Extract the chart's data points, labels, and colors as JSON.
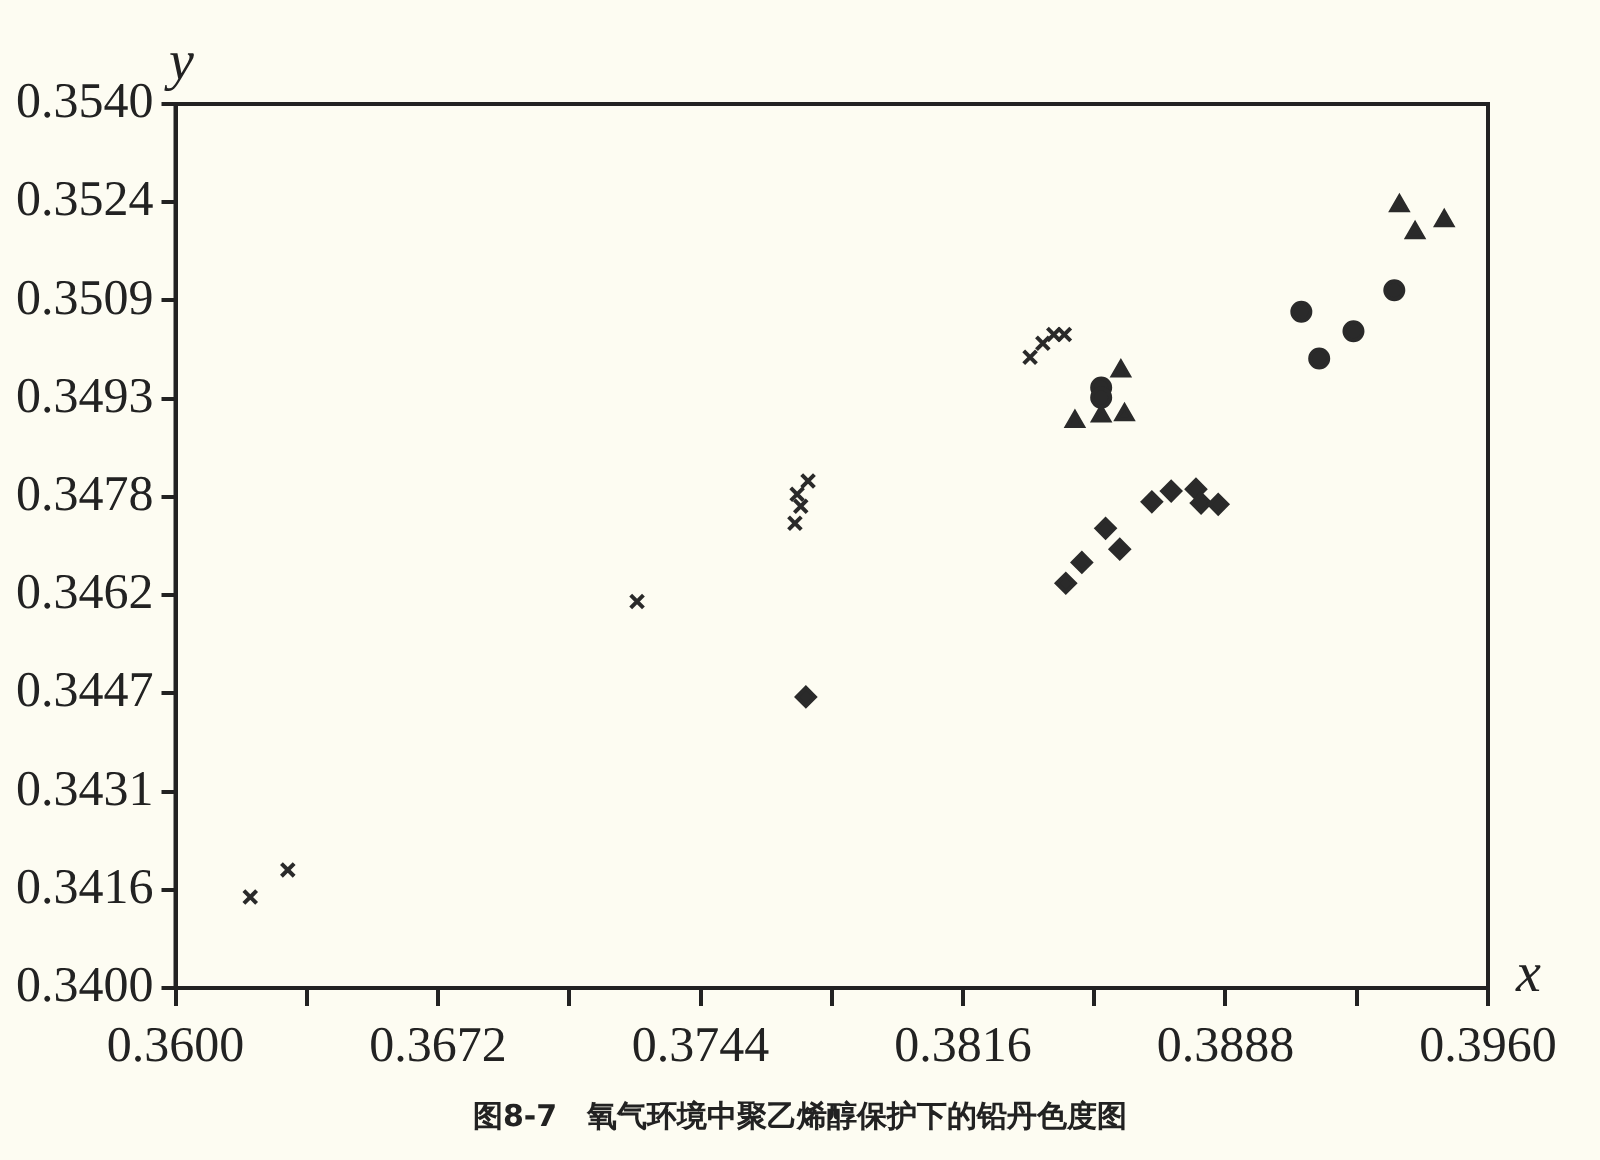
{
  "chart_data": {
    "type": "scatter",
    "xlabel": "x",
    "ylabel": "y",
    "annotations": [
      "图8-7　氧气环境中聚乙烯醇保护下的铅丹色度图"
    ],
    "xlim": [
      0.36,
      0.396
    ],
    "ylim": [
      0.34,
      0.354
    ],
    "xticks": [
      {
        "value": 0.36,
        "label": "0.3600"
      },
      {
        "value": 0.3636,
        "label": null
      },
      {
        "value": 0.3672,
        "label": "0.3672"
      },
      {
        "value": 0.3708,
        "label": null
      },
      {
        "value": 0.3744,
        "label": "0.3744"
      },
      {
        "value": 0.378,
        "label": null
      },
      {
        "value": 0.3816,
        "label": "0.3816"
      },
      {
        "value": 0.3852,
        "label": null
      },
      {
        "value": 0.3888,
        "label": "0.3888"
      },
      {
        "value": 0.3924,
        "label": null
      },
      {
        "value": 0.396,
        "label": "0.3960"
      }
    ],
    "yticks": [
      {
        "value": 0.34,
        "label": "0.3400"
      },
      {
        "value": 0.341556,
        "label": "0.3416"
      },
      {
        "value": 0.343111,
        "label": "0.3431"
      },
      {
        "value": 0.344667,
        "label": "0.3447"
      },
      {
        "value": 0.346222,
        "label": "0.3462"
      },
      {
        "value": 0.347778,
        "label": "0.3478"
      },
      {
        "value": 0.349333,
        "label": "0.3493"
      },
      {
        "value": 0.350889,
        "label": "0.3509"
      },
      {
        "value": 0.352444,
        "label": "0.3524"
      },
      {
        "value": 0.354,
        "label": "0.3540"
      }
    ],
    "grid": false,
    "legend": false,
    "series": [
      {
        "color": "#2a2a2a",
        "marker": "cross",
        "x": [
          0.36205,
          0.36308,
          0.37266,
          0.37735,
          0.37705,
          0.37715,
          0.37699,
          0.38344,
          0.38379,
          0.38409,
          0.38438
        ],
        "values": [
          0.34144,
          0.34187,
          0.34612,
          0.34803,
          0.34782,
          0.34763,
          0.34736,
          0.34999,
          0.35021,
          0.35035,
          0.35035
        ]
      },
      {
        "color": "#2a2a2a",
        "marker": "diamond",
        "x": [
          0.37729,
          0.38442,
          0.38486,
          0.38551,
          0.3859,
          0.38678,
          0.38731,
          0.38799,
          0.38813,
          0.3886
        ],
        "values": [
          0.34461,
          0.34641,
          0.34674,
          0.34728,
          0.34695,
          0.3477,
          0.34787,
          0.3479,
          0.34768,
          0.34766
        ]
      },
      {
        "color": "#2a2a2a",
        "marker": "circle",
        "x": [
          0.38539,
          0.38539,
          0.39088,
          0.39137,
          0.39231,
          0.39343
        ],
        "values": [
          0.34951,
          0.34935,
          0.35071,
          0.34997,
          0.3504,
          0.35105
        ]
      },
      {
        "color": "#2a2a2a",
        "marker": "triangle",
        "x": [
          0.38593,
          0.38467,
          0.38539,
          0.38603,
          0.39357,
          0.394,
          0.3948
        ],
        "values": [
          0.34977,
          0.34897,
          0.34906,
          0.34908,
          0.35239,
          0.35196,
          0.35215
        ]
      }
    ]
  }
}
